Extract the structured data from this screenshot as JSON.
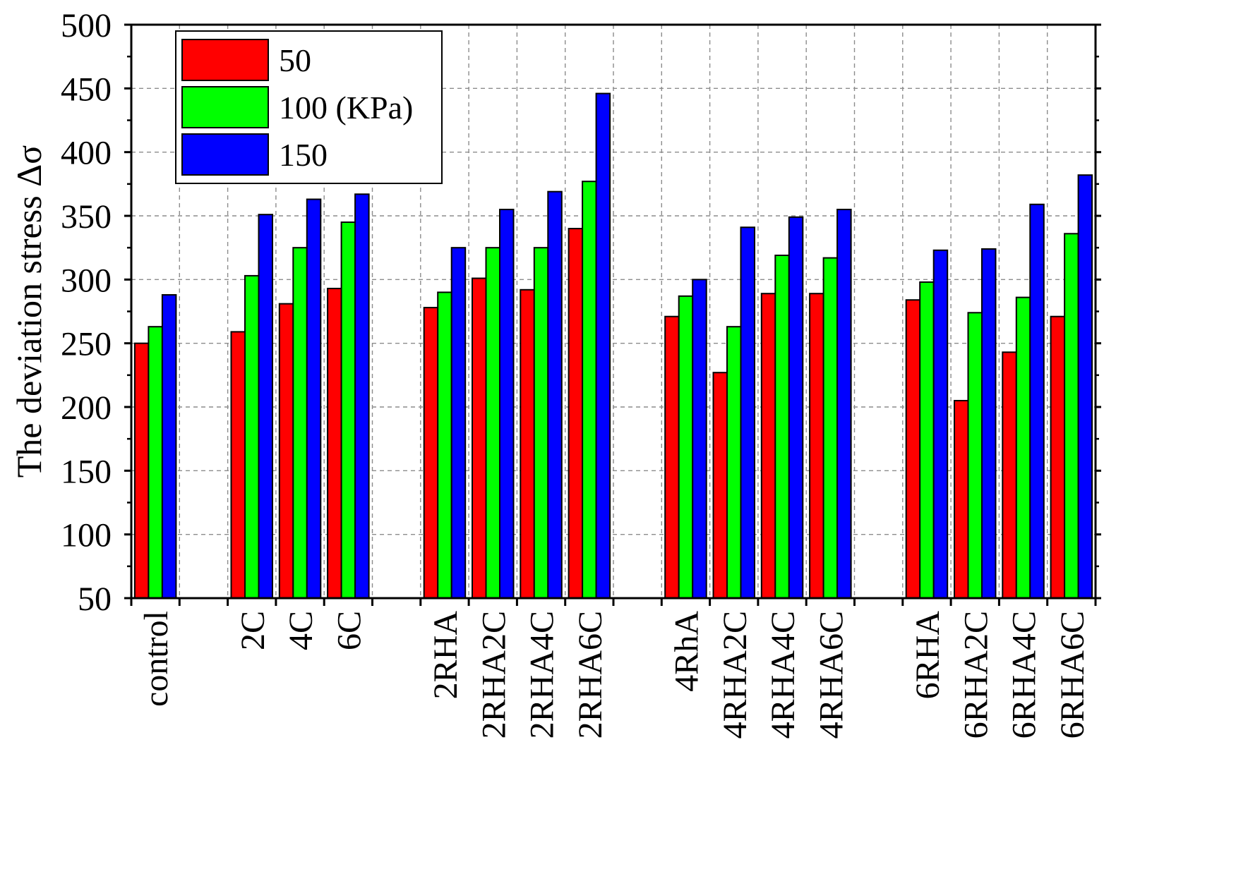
{
  "chart_data": {
    "type": "bar",
    "title": "",
    "xlabel": "",
    "ylabel": "The deviation stress Δσ",
    "ylim": [
      50,
      500
    ],
    "yticks": [
      50,
      100,
      150,
      200,
      250,
      300,
      350,
      400,
      450,
      500
    ],
    "grid": true,
    "legend_position": "top-left",
    "categories": [
      "control",
      "",
      "2C",
      "4C",
      "6C",
      "",
      "2RHA",
      "2RHA2C",
      "2RHA4C",
      "2RHA6C",
      "",
      "4RhA",
      "4RHA2C",
      "4RHA4C",
      "4RHA6C",
      "",
      "6RHA",
      "6RHA2C",
      "6RHA4C",
      "6RHA6C"
    ],
    "series": [
      {
        "name": "50",
        "color": "#ff0000",
        "values": [
          250,
          null,
          259,
          281,
          293,
          null,
          278,
          301,
          292,
          340,
          null,
          271,
          227,
          289,
          289,
          null,
          284,
          205,
          243,
          271
        ]
      },
      {
        "name": "100 (KPa)",
        "color": "#00ff00",
        "values": [
          263,
          null,
          303,
          325,
          345,
          null,
          290,
          325,
          325,
          377,
          null,
          287,
          263,
          319,
          317,
          null,
          298,
          274,
          286,
          336
        ]
      },
      {
        "name": "150",
        "color": "#0000ff",
        "values": [
          288,
          null,
          351,
          363,
          367,
          null,
          325,
          355,
          369,
          446,
          null,
          300,
          341,
          349,
          355,
          null,
          323,
          324,
          359,
          382
        ]
      }
    ]
  }
}
